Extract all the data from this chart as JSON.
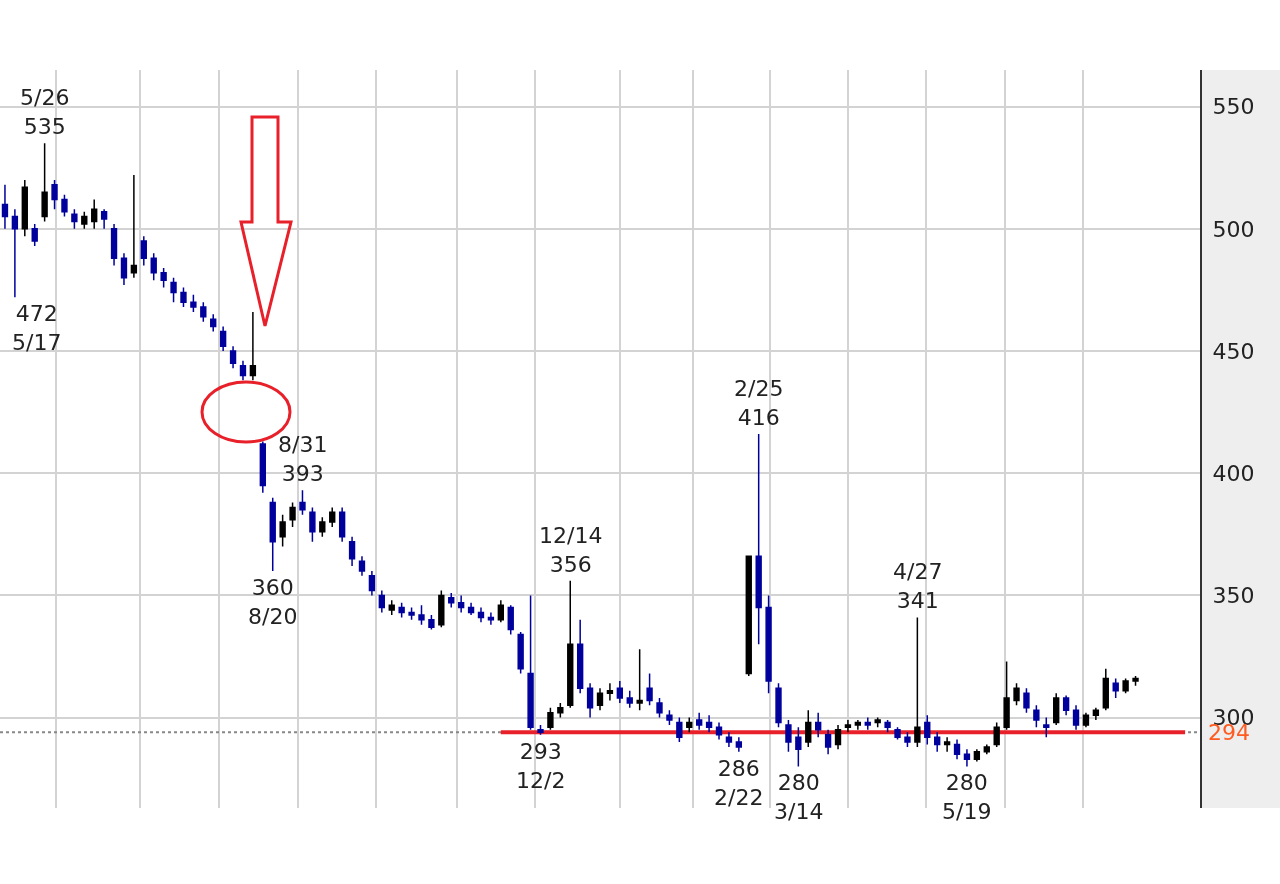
{
  "chart_data": {
    "type": "candlestick",
    "categories": [
      null,
      null,
      null,
      null,
      null,
      null,
      null,
      null,
      null,
      null,
      null,
      null,
      null,
      null,
      null,
      null,
      null,
      null,
      null,
      null,
      null,
      null,
      null,
      null,
      null,
      null,
      null,
      null,
      null,
      null,
      null,
      null,
      null,
      null,
      null,
      null,
      null,
      null,
      null,
      null,
      null,
      null,
      null,
      null,
      null,
      null,
      null,
      null,
      null,
      null,
      null,
      null,
      null,
      null,
      null,
      null,
      null,
      null,
      null,
      null,
      null,
      null,
      null,
      null,
      null,
      null,
      null,
      null,
      null,
      null,
      null,
      null,
      null,
      null,
      null,
      null,
      null,
      null,
      null,
      null,
      null,
      null,
      null,
      null,
      null,
      null,
      null,
      null,
      null,
      null,
      null,
      null,
      null,
      null,
      null,
      null,
      null,
      null,
      null,
      null,
      null,
      null,
      null,
      null,
      null,
      null,
      null,
      null,
      null,
      null,
      null,
      null,
      null,
      null,
      null,
      null,
      null,
      null,
      null,
      null,
      null
    ],
    "ohlc": [
      [
        510,
        518,
        500,
        505
      ],
      [
        505,
        508,
        472,
        500
      ],
      [
        500,
        520,
        497,
        517
      ],
      [
        500,
        502,
        493,
        495
      ],
      [
        505,
        535,
        503,
        515
      ],
      [
        518,
        520,
        508,
        512
      ],
      [
        512,
        514,
        505,
        507
      ],
      [
        506,
        508,
        500,
        503
      ],
      [
        502,
        507,
        500,
        505
      ],
      [
        503,
        512,
        500,
        508
      ],
      [
        507,
        508,
        500,
        504
      ],
      [
        500,
        502,
        485,
        488
      ],
      [
        488,
        490,
        477,
        480
      ],
      [
        482,
        522,
        480,
        485
      ],
      [
        495,
        497,
        485,
        488
      ],
      [
        488,
        490,
        479,
        482
      ],
      [
        482,
        484,
        476,
        479
      ],
      [
        478,
        480,
        470,
        474
      ],
      [
        474,
        476,
        468,
        470
      ],
      [
        470,
        473,
        466,
        468
      ],
      [
        468,
        470,
        462,
        464
      ],
      [
        463,
        465,
        458,
        460
      ],
      [
        458,
        460,
        450,
        452
      ],
      [
        450,
        452,
        443,
        445
      ],
      [
        444,
        446,
        438,
        440
      ],
      [
        440,
        466,
        438,
        444
      ],
      [
        412,
        413,
        392,
        395
      ],
      [
        388,
        390,
        360,
        372
      ],
      [
        374,
        383,
        370,
        380
      ],
      [
        381,
        388,
        378,
        386
      ],
      [
        388,
        393,
        383,
        385
      ],
      [
        384,
        386,
        372,
        376
      ],
      [
        376,
        382,
        374,
        380
      ],
      [
        380,
        386,
        378,
        384
      ],
      [
        384,
        386,
        372,
        374
      ],
      [
        372,
        374,
        362,
        365
      ],
      [
        364,
        366,
        358,
        360
      ],
      [
        358,
        360,
        350,
        352
      ],
      [
        350,
        352,
        343,
        345
      ],
      [
        344,
        348,
        342,
        346
      ],
      [
        345,
        347,
        341,
        343
      ],
      [
        343,
        345,
        340,
        342
      ],
      [
        342,
        346,
        338,
        340
      ],
      [
        340,
        342,
        336,
        337
      ],
      [
        338,
        352,
        337,
        350
      ],
      [
        349,
        351,
        345,
        347
      ],
      [
        347,
        350,
        343,
        345
      ],
      [
        345,
        347,
        342,
        343
      ],
      [
        343,
        345,
        339,
        341
      ],
      [
        341,
        343,
        338,
        340
      ],
      [
        340,
        348,
        339,
        346
      ],
      [
        345,
        346,
        334,
        336
      ],
      [
        334,
        335,
        318,
        320
      ],
      [
        318,
        350,
        295,
        296
      ],
      [
        295,
        297,
        293,
        294
      ],
      [
        296,
        304,
        295,
        302
      ],
      [
        302,
        306,
        300,
        304
      ],
      [
        305,
        356,
        304,
        330
      ],
      [
        330,
        340,
        310,
        312
      ],
      [
        312,
        314,
        300,
        304
      ],
      [
        305,
        312,
        303,
        310
      ],
      [
        310,
        314,
        307,
        311
      ],
      [
        312,
        315,
        306,
        308
      ],
      [
        308,
        311,
        304,
        306
      ],
      [
        306,
        328,
        303,
        307
      ],
      [
        312,
        318,
        305,
        307
      ],
      [
        306,
        308,
        300,
        302
      ],
      [
        301,
        303,
        297,
        299
      ],
      [
        298,
        300,
        290,
        292
      ],
      [
        296,
        300,
        294,
        298
      ],
      [
        299,
        302,
        295,
        297
      ],
      [
        298,
        301,
        294,
        296
      ],
      [
        296,
        298,
        291,
        293
      ],
      [
        292,
        294,
        288,
        290
      ],
      [
        290,
        292,
        286,
        288
      ],
      [
        318,
        366,
        317,
        366
      ],
      [
        366,
        416,
        330,
        345
      ],
      [
        345,
        350,
        310,
        315
      ],
      [
        312,
        314,
        296,
        298
      ],
      [
        297,
        299,
        286,
        290
      ],
      [
        292,
        296,
        280,
        287
      ],
      [
        290,
        303,
        288,
        298
      ],
      [
        298,
        302,
        292,
        295
      ],
      [
        293,
        295,
        285,
        288
      ],
      [
        289,
        297,
        287,
        295
      ],
      [
        296,
        299,
        294,
        297
      ],
      [
        297,
        299,
        295,
        298
      ],
      [
        298,
        300,
        295,
        297
      ],
      [
        298,
        300,
        296,
        299
      ],
      [
        298,
        299,
        294,
        296
      ],
      [
        295,
        296,
        291,
        292
      ],
      [
        292,
        294,
        288,
        290
      ],
      [
        290,
        341,
        288,
        296
      ],
      [
        298,
        301,
        289,
        292
      ],
      [
        292,
        294,
        286,
        289
      ],
      [
        289,
        292,
        286,
        290
      ],
      [
        289,
        291,
        283,
        285
      ],
      [
        285,
        287,
        280,
        283
      ],
      [
        283,
        287,
        282,
        286
      ],
      [
        286,
        289,
        285,
        288
      ],
      [
        289,
        298,
        288,
        296
      ],
      [
        296,
        323,
        295,
        308
      ],
      [
        307,
        314,
        305,
        312
      ],
      [
        310,
        312,
        302,
        304
      ],
      [
        303,
        305,
        296,
        299
      ],
      [
        297,
        300,
        292,
        296
      ],
      [
        298,
        310,
        297,
        308
      ],
      [
        308,
        309,
        301,
        303
      ],
      [
        303,
        305,
        295,
        297
      ],
      [
        297,
        302,
        296,
        301
      ],
      [
        301,
        304,
        299,
        303
      ],
      [
        304,
        320,
        303,
        316
      ],
      [
        314,
        316,
        308,
        311
      ],
      [
        311,
        316,
        310,
        315
      ],
      [
        315,
        317,
        313,
        316
      ],
      null,
      null,
      null,
      null,
      null,
      null
    ],
    "colors": [
      "#00009c",
      "#00009c",
      "#000000",
      "#00009c",
      "#000000",
      "#00009c",
      "#00009c",
      "#00009c",
      "#000000",
      "#000000",
      "#00009c",
      "#00009c",
      "#00009c",
      "#000000",
      "#00009c",
      "#00009c",
      "#00009c",
      "#00009c",
      "#00009c",
      "#00009c",
      "#00009c",
      "#00009c",
      "#00009c",
      "#00009c",
      "#00009c",
      "#000000",
      "#00009c",
      "#00009c",
      "#000000",
      "#000000",
      "#00009c",
      "#00009c",
      "#000000",
      "#000000",
      "#00009c",
      "#00009c",
      "#00009c",
      "#00009c",
      "#00009c",
      "#000000",
      "#00009c",
      "#00009c",
      "#00009c",
      "#00009c",
      "#000000",
      "#00009c",
      "#00009c",
      "#00009c",
      "#00009c",
      "#00009c",
      "#000000",
      "#00009c",
      "#00009c",
      "#00009c",
      "#00009c",
      "#000000",
      "#000000",
      "#000000",
      "#00009c",
      "#00009c",
      "#000000",
      "#000000",
      "#00009c",
      "#00009c",
      "#000000",
      "#00009c",
      "#00009c",
      "#00009c",
      "#00009c",
      "#000000",
      "#00009c",
      "#00009c",
      "#00009c",
      "#00009c",
      "#00009c",
      "#000000",
      "#00009c",
      "#00009c",
      "#00009c",
      "#00009c",
      "#00009c",
      "#000000",
      "#00009c",
      "#00009c",
      "#000000",
      "#000000",
      "#000000",
      "#00009c",
      "#000000",
      "#00009c",
      "#00009c",
      "#00009c",
      "#000000",
      "#00009c",
      "#00009c",
      "#000000",
      "#00009c",
      "#00009c",
      "#000000",
      "#000000",
      "#000000",
      "#000000",
      "#000000",
      "#00009c",
      "#00009c",
      "#00009c",
      "#000000",
      "#00009c",
      "#00009c",
      "#000000",
      "#000000",
      "#000000",
      "#00009c",
      "#000000",
      "#000000",
      null,
      null,
      null,
      null,
      null,
      null
    ],
    "value_labels": [
      null,
      "472\n5/17",
      null,
      null,
      "5/26\n535",
      null,
      null,
      null,
      null,
      null,
      null,
      null,
      null,
      null,
      null,
      null,
      null,
      null,
      null,
      null,
      null,
      null,
      null,
      null,
      null,
      null,
      null,
      "360\n8/20",
      null,
      null,
      "8/31\n393",
      null,
      null,
      null,
      null,
      null,
      null,
      null,
      null,
      null,
      null,
      null,
      null,
      null,
      null,
      null,
      null,
      null,
      null,
      null,
      null,
      null,
      null,
      null,
      "293\n12/2",
      null,
      null,
      "12/14\n356",
      null,
      null,
      null,
      null,
      null,
      null,
      null,
      null,
      null,
      null,
      null,
      null,
      null,
      null,
      null,
      null,
      "286\n2/22",
      null,
      "2/25\n416",
      null,
      null,
      null,
      "280\n3/14",
      null,
      null,
      null,
      null,
      null,
      null,
      null,
      null,
      null,
      null,
      null,
      "4/27\n341",
      null,
      null,
      null,
      null,
      "280\n5/19",
      null,
      null,
      null,
      null,
      null,
      null,
      null,
      null,
      null,
      null,
      null,
      null,
      null,
      null,
      null,
      null,
      null,
      null,
      null,
      null,
      null,
      null,
      null
    ],
    "series": [
      {
        "type": "line",
        "color": "#e8202a",
        "values": [
          null,
          null,
          null,
          null,
          null,
          null,
          null,
          null,
          null,
          null,
          null,
          null,
          null,
          null,
          null,
          null,
          null,
          null,
          null,
          null,
          null,
          null,
          null,
          null,
          null,
          null,
          null,
          null,
          null,
          null,
          null,
          null,
          null,
          null,
          null,
          null,
          null,
          null,
          null,
          null,
          null,
          null,
          null,
          null,
          null,
          null,
          null,
          null,
          null,
          null,
          294,
          294,
          294,
          294,
          294,
          294,
          294,
          294,
          294,
          294,
          294,
          294,
          294,
          294,
          294,
          294,
          294,
          294,
          294,
          294,
          294,
          294,
          294,
          294,
          294,
          294,
          294,
          294,
          294,
          294,
          294,
          294,
          294,
          294,
          294,
          294,
          294,
          294,
          294,
          294,
          294,
          294,
          294,
          294,
          294,
          294,
          294,
          294,
          294,
          294,
          294,
          294,
          294,
          294,
          294,
          294,
          294,
          294,
          294,
          294,
          294,
          294,
          294,
          294,
          294,
          294,
          294,
          294,
          294,
          294,
          null
        ]
      }
    ],
    "ylim": [
      263,
      565
    ],
    "yticks": [
      300,
      350,
      400,
      450,
      500,
      550
    ],
    "grid": true,
    "tick_labels": "y",
    "ref_lines": [
      {
        "axis": "y",
        "value": 294,
        "label": "294",
        "color": "#888888",
        "line_style": "dotted"
      }
    ]
  }
}
